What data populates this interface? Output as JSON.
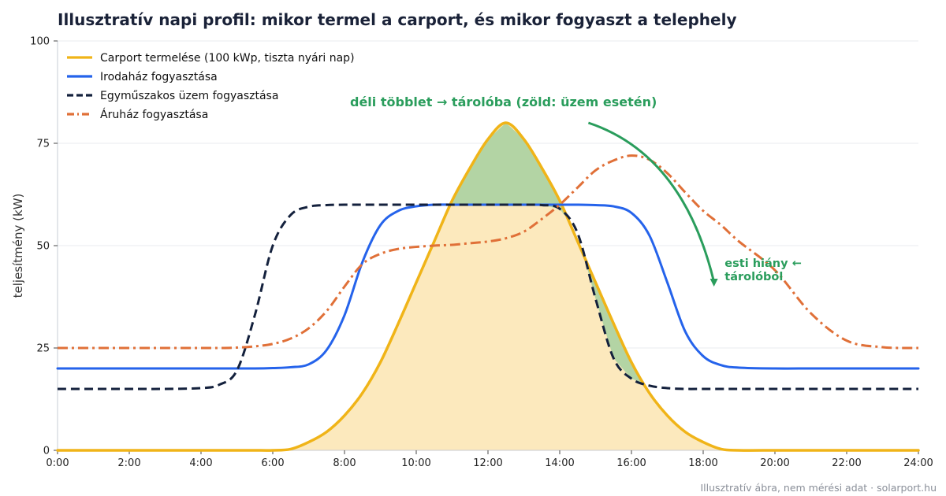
{
  "chart_data": {
    "type": "line",
    "title": "Illusztratív napi profil: mikor termel a carport, és mikor fogyaszt a telephely",
    "xlabel": "",
    "ylabel": "teljesítmény (kW)",
    "xlim": [
      0,
      24
    ],
    "ylim": [
      0,
      100
    ],
    "x_ticks": [
      0,
      2,
      4,
      6,
      8,
      10,
      12,
      14,
      16,
      18,
      20,
      22,
      24
    ],
    "x_tick_labels": [
      "0:00",
      "2:00",
      "4:00",
      "6:00",
      "8:00",
      "10:00",
      "12:00",
      "14:00",
      "16:00",
      "18:00",
      "20:00",
      "22:00",
      "24:00"
    ],
    "y_ticks": [
      0,
      25,
      50,
      75,
      100
    ],
    "y_tick_labels": [
      "0",
      "25",
      "50",
      "75",
      "100"
    ],
    "grid": "horizontal",
    "legend_position": "top-left",
    "x": [
      0,
      1,
      2,
      3,
      4,
      4.5,
      5,
      5.5,
      6,
      6.5,
      7,
      7.5,
      8,
      8.5,
      9,
      9.5,
      10,
      10.5,
      11,
      11.5,
      12,
      12.5,
      13,
      13.5,
      14,
      14.5,
      15,
      15.5,
      16,
      16.5,
      17,
      17.5,
      18,
      18.5,
      19,
      20,
      21,
      22,
      23,
      24
    ],
    "series": [
      {
        "name": "Carport termelése (100 kWp, tiszta nyári nap)",
        "color": "#f0b418",
        "style": "solid",
        "fill": "#fce9bd",
        "values": [
          0,
          0,
          0,
          0,
          0,
          0,
          0,
          0,
          0,
          0.3,
          2,
          4.5,
          8.5,
          14,
          21.5,
          31,
          41,
          51,
          61,
          69,
          76,
          80,
          76,
          69,
          61,
          51,
          41,
          31,
          21.5,
          14,
          8.5,
          4.5,
          2,
          0.3,
          0,
          0,
          0,
          0,
          0,
          0
        ]
      },
      {
        "name": "Irodaház fogyasztása",
        "color": "#2563eb",
        "style": "solid",
        "values": [
          20,
          20,
          20,
          20,
          20,
          20,
          20,
          20,
          20.1,
          20.3,
          21,
          24.5,
          33,
          46,
          55,
          58.5,
          59.6,
          60,
          60,
          60,
          60,
          60,
          60,
          60,
          60,
          60,
          59.9,
          59.6,
          58,
          52.5,
          41,
          29,
          23,
          20.8,
          20.2,
          20,
          20,
          20,
          20,
          20
        ]
      },
      {
        "name": "Egyműszakos üzem fogyasztása",
        "color": "#14213d",
        "style": "dashed",
        "values": [
          15,
          15,
          15,
          15,
          15.2,
          16,
          19.5,
          33,
          50,
          57.5,
          59.5,
          59.9,
          60,
          60,
          60,
          60,
          60,
          60,
          60,
          60,
          60,
          60,
          60,
          59.9,
          59,
          53,
          37,
          22.5,
          17.5,
          15.8,
          15.2,
          15,
          15,
          15,
          15,
          15,
          15,
          15,
          15,
          15
        ]
      },
      {
        "name": "Áruház fogyasztása",
        "color": "#e07038",
        "style": "dashdot",
        "values": [
          25,
          25,
          25,
          25,
          25,
          25,
          25.1,
          25.4,
          26,
          27.3,
          29.8,
          34,
          40,
          45.5,
          48,
          49.2,
          49.7,
          50,
          50.2,
          50.6,
          51,
          51.8,
          53.4,
          56.5,
          60,
          64.2,
          68.4,
          70.8,
          72,
          71,
          67.7,
          63,
          58.5,
          55,
          51,
          44,
          33.5,
          26.8,
          25.2,
          25
        ]
      }
    ],
    "annotations": [
      {
        "text": "déli többlet → tárolóba (zöld: üzem esetén)",
        "color": "#2a9d5c",
        "x": 10.5,
        "y": 85
      },
      {
        "text": "esti hiány ←",
        "color": "#2a9d5c",
        "x": 18.6,
        "y": 45.5
      },
      {
        "text": "tárolóból",
        "color": "#2a9d5c",
        "x": 18.6,
        "y": 42.5
      }
    ],
    "arrow": {
      "from": [
        14.8,
        80
      ],
      "to": [
        18.3,
        40
      ],
      "color": "#2a9d5c"
    },
    "surplus_fill": {
      "over_series": "Egyműszakos üzem fogyasztása",
      "color": "#b3d4a4"
    },
    "footer": "Illusztratív ábra, nem mérési adat · solarport.hu"
  }
}
